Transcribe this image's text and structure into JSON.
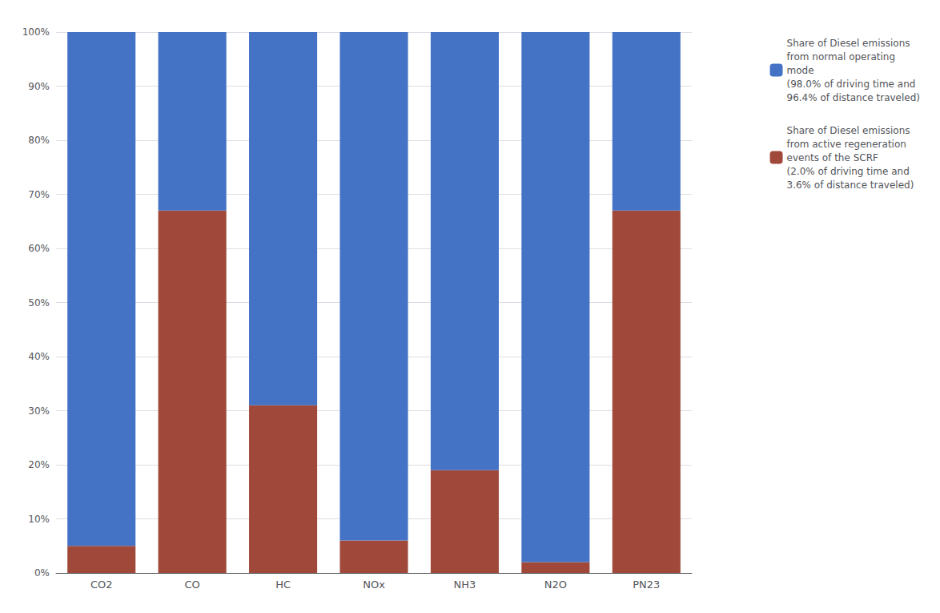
{
  "chart_data": {
    "type": "bar",
    "stacked": true,
    "categories": [
      "CO2",
      "CO",
      "HC",
      "NOx",
      "NH3",
      "N2O",
      "PN23"
    ],
    "series": [
      {
        "name": "Share of Diesel emissions\nfrom active regeneration\nevents of the SCRF\n(2.0% of driving time and\n3.6% of distance traveled)",
        "color": "#A0493A",
        "values": [
          5,
          67,
          31,
          6,
          19,
          2,
          67
        ]
      },
      {
        "name": "Share of Diesel emissions\nfrom normal operating\nmode\n(98.0% of driving time and\n96.4% of distance traveled)",
        "color": "#4472C4",
        "values": [
          95,
          33,
          69,
          94,
          81,
          98,
          33
        ]
      }
    ],
    "ylim": [
      0,
      100
    ],
    "yticks": [
      {
        "value": 0,
        "label": "0%"
      },
      {
        "value": 10,
        "label": "10%"
      },
      {
        "value": 20,
        "label": "20%"
      },
      {
        "value": 30,
        "label": "30%"
      },
      {
        "value": 40,
        "label": "40%"
      },
      {
        "value": 50,
        "label": "50%"
      },
      {
        "value": 60,
        "label": "60%"
      },
      {
        "value": 70,
        "label": "70%"
      },
      {
        "value": 80,
        "label": "80%"
      },
      {
        "value": 90,
        "label": "90%"
      },
      {
        "value": 100,
        "label": "100%"
      }
    ],
    "grid": true,
    "legend": "right"
  }
}
